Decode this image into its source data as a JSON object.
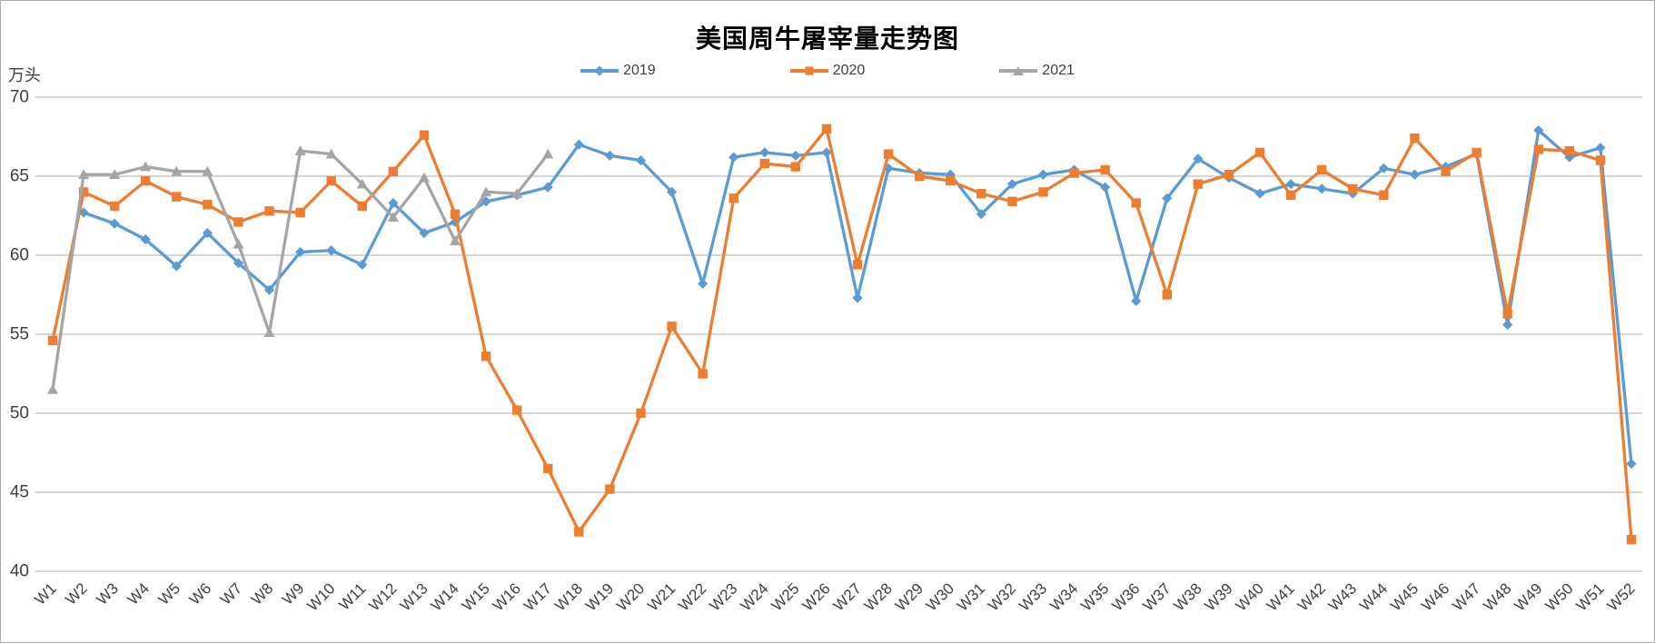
{
  "page": {
    "title": "美国周牛屠宰量走势图",
    "unit_label": "万头"
  },
  "legend": {
    "items": [
      {
        "label": "2019",
        "color": "#5B9BD5",
        "marker": "diamond"
      },
      {
        "label": "2020",
        "color": "#ED7D31",
        "marker": "square"
      },
      {
        "label": "2021",
        "color": "#A5A5A5",
        "marker": "triangle"
      }
    ]
  },
  "colors": {
    "gridline": "#c9c9c9",
    "tick_text": "#3f3f3f",
    "title_text": "#000000",
    "border": "#ababab"
  },
  "chart_data": {
    "type": "line",
    "title": "美国周牛屠宰量走势图",
    "xlabel": "",
    "ylabel": "万头",
    "ylim": [
      40,
      70
    ],
    "y_ticks": [
      70,
      65,
      60,
      55,
      50,
      45,
      40
    ],
    "grid": "horizontal",
    "legend_position": "top-center",
    "x_label_rotation": -45,
    "categories": [
      "W1",
      "W2",
      "W3",
      "W4",
      "W5",
      "W6",
      "W7",
      "W8",
      "W9",
      "W10",
      "W11",
      "W12",
      "W13",
      "W14",
      "W15",
      "W16",
      "W17",
      "W18",
      "W19",
      "W20",
      "W21",
      "W22",
      "W23",
      "W24",
      "W25",
      "W26",
      "W27",
      "W28",
      "W29",
      "W30",
      "W31",
      "W32",
      "W33",
      "W34",
      "W35",
      "W36",
      "W37",
      "W38",
      "W39",
      "W40",
      "W41",
      "W42",
      "W43",
      "W44",
      "W45",
      "W46",
      "W47",
      "W48",
      "W49",
      "W50",
      "W51",
      "W52"
    ],
    "series": [
      {
        "name": "2019",
        "color": "#5B9BD5",
        "marker": "diamond",
        "values": [
          null,
          62.7,
          62.0,
          61.0,
          59.3,
          61.4,
          59.5,
          57.8,
          60.2,
          60.3,
          59.4,
          63.3,
          61.4,
          62.1,
          63.4,
          63.8,
          64.3,
          67.0,
          66.3,
          66.0,
          64.0,
          58.2,
          66.2,
          66.5,
          66.3,
          66.5,
          57.3,
          65.5,
          65.2,
          65.1,
          62.6,
          64.5,
          65.1,
          65.4,
          64.3,
          57.1,
          63.6,
          66.1,
          64.9,
          63.9,
          64.5,
          64.2,
          63.9,
          65.5,
          65.1,
          65.6,
          66.4,
          55.6,
          67.9,
          66.2,
          66.8,
          46.8
        ]
      },
      {
        "name": "2020",
        "color": "#ED7D31",
        "marker": "square",
        "values": [
          54.6,
          64.0,
          63.1,
          64.7,
          63.7,
          63.2,
          62.1,
          62.8,
          62.7,
          64.7,
          63.1,
          65.3,
          67.6,
          62.6,
          53.6,
          50.2,
          46.5,
          42.5,
          45.2,
          50.0,
          55.5,
          52.5,
          63.6,
          65.8,
          65.6,
          68.0,
          59.4,
          66.4,
          65.0,
          64.7,
          63.9,
          63.4,
          64.0,
          65.2,
          65.4,
          63.3,
          57.5,
          64.5,
          65.1,
          66.5,
          63.8,
          65.4,
          64.2,
          63.8,
          67.4,
          65.3,
          66.5,
          56.3,
          66.7,
          66.6,
          66.0,
          42.0
        ]
      },
      {
        "name": "2021",
        "color": "#A5A5A5",
        "marker": "triangle",
        "values": [
          51.5,
          65.1,
          65.1,
          65.6,
          65.3,
          65.3,
          60.7,
          55.1,
          66.6,
          66.4,
          64.5,
          62.4,
          64.9,
          60.9,
          64.0,
          63.9,
          66.4,
          null,
          null,
          null,
          null,
          null,
          null,
          null,
          null,
          null,
          null,
          null,
          null,
          null,
          null,
          null,
          null,
          null,
          null,
          null,
          null,
          null,
          null,
          null,
          null,
          null,
          null,
          null,
          null,
          null,
          null,
          null,
          null,
          null,
          null,
          null
        ]
      }
    ]
  }
}
